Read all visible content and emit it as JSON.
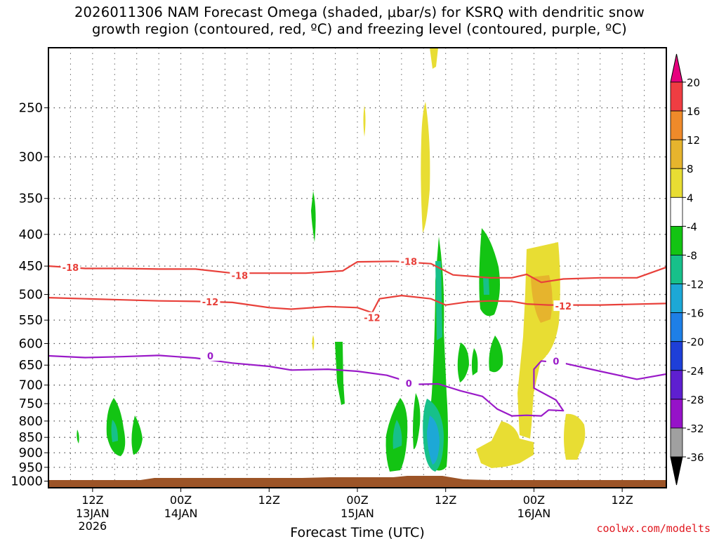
{
  "title_line1": "2026011306 NAM Forecast Omega (shaded, μbar/s) for KSRQ with dendritic snow",
  "title_line2": "growth region (contoured, red, ºC) and freezing level (contoured, purple, ºC)",
  "credit": "coolwx.com/modelts",
  "chart_data": {
    "type": "time-height cross section",
    "title": "2026011306 NAM Forecast Omega (shaded, μbar/s) for KSRQ with dendritic snow growth region (contoured, red, ºC) and freezing level (contoured, purple, ºC)",
    "xlabel": "Forecast Time (UTC)",
    "ylabel": "",
    "x_range_hours": [
      0,
      84
    ],
    "x_ticks": [
      {
        "hour": 6,
        "label": "12Z",
        "sub": [
          "13JAN",
          "2026"
        ]
      },
      {
        "hour": 18,
        "label": "00Z",
        "sub": [
          "14JAN"
        ]
      },
      {
        "hour": 30,
        "label": "12Z",
        "sub": []
      },
      {
        "hour": 42,
        "label": "00Z",
        "sub": [
          "15JAN"
        ]
      },
      {
        "hour": 54,
        "label": "12Z",
        "sub": []
      },
      {
        "hour": 66,
        "label": "00Z",
        "sub": [
          "16JAN"
        ]
      },
      {
        "hour": 78,
        "label": "12Z",
        "sub": []
      }
    ],
    "y_ticks_hpa": [
      250,
      300,
      350,
      400,
      450,
      500,
      550,
      600,
      650,
      700,
      750,
      800,
      850,
      900,
      950,
      1000
    ],
    "y_range_hpa": [
      200,
      1025
    ],
    "colorbar": {
      "labels": [
        "20",
        "16",
        "12",
        "8",
        "4",
        "-4",
        "-8",
        "-12",
        "-16",
        "-20",
        "-24",
        "-28",
        "-32",
        "-36"
      ],
      "colors": [
        "#e6007e",
        "#ef3d42",
        "#ef8a2a",
        "#e6b42d",
        "#e8dd33",
        "#ffffff",
        "#13c413",
        "#17c08a",
        "#1da8d6",
        "#1e7fe6",
        "#1e3fd8",
        "#5e1fd0",
        "#9612c8",
        "#a0a0a0",
        "#000000"
      ]
    },
    "contours": [
      {
        "name": "-18",
        "color": "#e8403a",
        "label": "-18",
        "points": [
          [
            0,
            450
          ],
          [
            5,
            454
          ],
          [
            10,
            454
          ],
          [
            15,
            455
          ],
          [
            20,
            455
          ],
          [
            25,
            462
          ],
          [
            30,
            462
          ],
          [
            35,
            462
          ],
          [
            40,
            458
          ],
          [
            42,
            443
          ],
          [
            47,
            442
          ],
          [
            52,
            446
          ],
          [
            55,
            465
          ],
          [
            60,
            470
          ],
          [
            63,
            470
          ],
          [
            65,
            464
          ],
          [
            67,
            478
          ],
          [
            70,
            472
          ],
          [
            75,
            470
          ],
          [
            80,
            470
          ],
          [
            84,
            452
          ]
        ],
        "labels_at": [
          [
            3,
            452
          ],
          [
            26,
            466
          ],
          [
            49,
            442
          ]
        ]
      },
      {
        "name": "-12",
        "color": "#e8403a",
        "label": "-12",
        "points": [
          [
            0,
            506
          ],
          [
            5,
            508
          ],
          [
            10,
            510
          ],
          [
            15,
            512
          ],
          [
            20,
            513
          ],
          [
            25,
            515
          ],
          [
            30,
            525
          ],
          [
            33,
            528
          ],
          [
            38,
            523
          ],
          [
            42,
            525
          ],
          [
            44,
            535
          ],
          [
            45,
            508
          ],
          [
            48,
            502
          ],
          [
            52,
            508
          ],
          [
            54,
            520
          ],
          [
            57,
            514
          ],
          [
            60,
            512
          ],
          [
            63,
            513
          ],
          [
            65,
            518
          ],
          [
            68,
            520
          ],
          [
            70,
            520
          ],
          [
            75,
            520
          ],
          [
            84,
            517
          ]
        ],
        "labels_at": [
          [
            22,
            514
          ],
          [
            44,
            545
          ],
          [
            70,
            522
          ]
        ]
      },
      {
        "name": "0",
        "color": "#9a1ac8",
        "label": "0",
        "points": [
          [
            0,
            628
          ],
          [
            5,
            632
          ],
          [
            10,
            630
          ],
          [
            15,
            627
          ],
          [
            20,
            633
          ],
          [
            25,
            645
          ],
          [
            30,
            653
          ],
          [
            33,
            662
          ],
          [
            38,
            660
          ],
          [
            42,
            665
          ],
          [
            46,
            675
          ],
          [
            50,
            698
          ],
          [
            53,
            697
          ],
          [
            56,
            715
          ],
          [
            59,
            730
          ],
          [
            61,
            765
          ],
          [
            63,
            785
          ],
          [
            65,
            783
          ],
          [
            67,
            785
          ],
          [
            68,
            768
          ],
          [
            70,
            770
          ],
          [
            69,
            740
          ],
          [
            66,
            708
          ],
          [
            66,
            660
          ],
          [
            67,
            640
          ],
          [
            70,
            645
          ],
          [
            75,
            665
          ],
          [
            80,
            685
          ],
          [
            84,
            672
          ]
        ],
        "labels_at": [
          [
            22,
            628
          ],
          [
            49,
            695
          ],
          [
            69,
            640
          ]
        ]
      }
    ],
    "omega_regions": [
      {
        "value": 8,
        "color": "#e8dd33",
        "desc": "upper-level ascent near 12Z 15JAN"
      },
      {
        "value": -8,
        "color": "#13c413",
        "desc": "low-level descent clusters"
      },
      {
        "value": -16,
        "color": "#1da8d6",
        "desc": "strongest descent near 12Z 15JAN ~880 hPa"
      },
      {
        "value": 12,
        "color": "#e6b42d",
        "desc": "mid-level ascent near 00Z 16JAN"
      }
    ]
  }
}
